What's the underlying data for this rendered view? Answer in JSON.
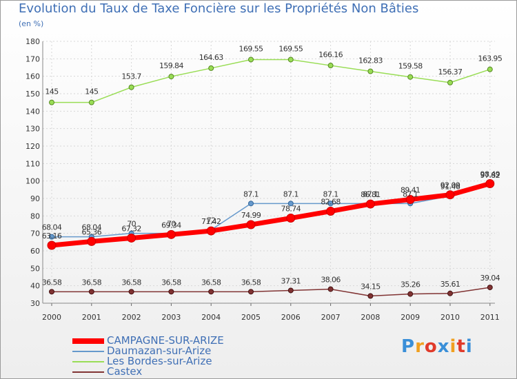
{
  "header": {
    "title": "Evolution du Taux de Taxe Foncière sur les Propriétés Non Bâties",
    "unit": "(en %)"
  },
  "chart_data": {
    "type": "line",
    "title": "Evolution du Taux de Taxe Foncière sur les Propriétés Non Bâties",
    "ylabel": "(en %)",
    "xlabel": "",
    "x": [
      "2000",
      "2001",
      "2002",
      "2003",
      "2004",
      "2005",
      "2006",
      "2007",
      "2008",
      "2009",
      "2010",
      "2011"
    ],
    "ylim": [
      30,
      180
    ],
    "yticks": [
      30,
      40,
      50,
      60,
      70,
      80,
      90,
      100,
      110,
      120,
      130,
      140,
      150,
      160,
      170,
      180
    ],
    "grid": true,
    "legend_position": "bottom-left",
    "series": [
      {
        "name": "CAMPAGNE-SUR-ARIZE",
        "color": "#ff0000",
        "values": [
          63.16,
          65.36,
          67.32,
          69.34,
          71.42,
          74.99,
          78.74,
          82.68,
          86.81,
          89.41,
          92.09,
          98.49
        ],
        "labels": [
          "63.16",
          "65.36",
          "67.32",
          "69.34",
          "71.42",
          "74.99",
          "78.74",
          "82.68",
          "86.81",
          "89.41",
          "92.09",
          "98.49"
        ]
      },
      {
        "name": "Daumazan-sur-Arize",
        "color": "#6699cc",
        "values": [
          68.04,
          68.04,
          70,
          70,
          72,
          87.1,
          87.1,
          87.1,
          87.1,
          87.1,
          91.46,
          97.82
        ],
        "labels": [
          "68.04",
          "68.04",
          "70",
          "70",
          "72",
          "87.1",
          "87.1",
          "87.1",
          "87.1",
          "87.1",
          "91.46",
          "97.82"
        ]
      },
      {
        "name": "Les Bordes-sur-Arize",
        "color": "#99dd55",
        "values": [
          145,
          145,
          153.7,
          159.84,
          164.63,
          169.55,
          169.55,
          166.16,
          162.83,
          159.58,
          156.37,
          163.95
        ],
        "labels": [
          "145",
          "145",
          "153.7",
          "159.84",
          "164.63",
          "169.55",
          "169.55",
          "166.16",
          "162.83",
          "159.58",
          "156.37",
          "163.95"
        ]
      },
      {
        "name": "Castex",
        "color": "#803333",
        "values": [
          36.58,
          36.58,
          36.58,
          36.58,
          36.58,
          36.58,
          37.31,
          38.06,
          34.15,
          35.26,
          35.61,
          39.04
        ],
        "labels": [
          "36.58",
          "36.58",
          "36.58",
          "36.58",
          "36.58",
          "36.58",
          "37.31",
          "38.06",
          "34.15",
          "35.26",
          "35.61",
          "39.04"
        ]
      }
    ]
  },
  "logo": {
    "text": "Proxiti",
    "colors": [
      "#3a8fd8",
      "#f0a020",
      "#e03a2a",
      "#3a8fd8",
      "#f0a020",
      "#e03a2a",
      "#3a8fd8"
    ]
  }
}
